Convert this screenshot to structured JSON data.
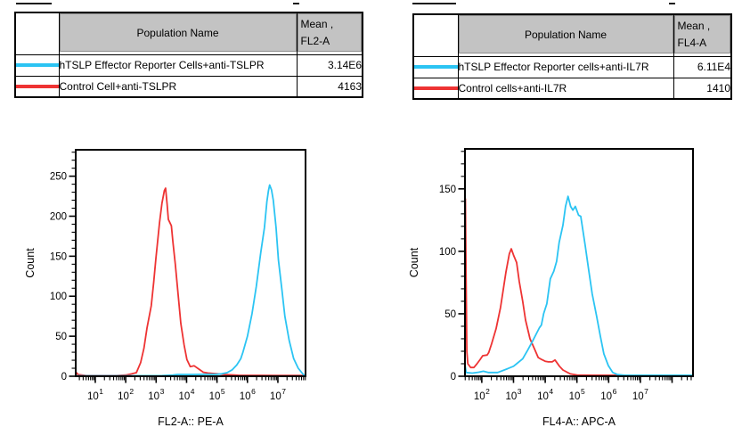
{
  "colors": {
    "cyan": "#2bc4f3",
    "red": "#ee3333",
    "table_header_bg": "#c3c3c3",
    "axis": "#000000"
  },
  "tables": [
    {
      "header": {
        "population": "Population Name",
        "mean_line1": "Mean ,",
        "mean_line2": "FL2-A"
      },
      "rows": [
        {
          "swatch": "cyan",
          "name": "hTSLP Effector Reporter Cells+anti-TSLPR",
          "mean": "3.14E6"
        },
        {
          "swatch": "red",
          "name": "Control Cell+anti-TSLPR",
          "mean": "4163"
        }
      ]
    },
    {
      "header": {
        "population": "Population Name",
        "mean_line1": "Mean ,",
        "mean_line2": "FL4-A"
      },
      "rows": [
        {
          "swatch": "cyan",
          "name": "hTSLP Effector Reporter cells+anti-IL7R",
          "mean": "6.11E4"
        },
        {
          "swatch": "red",
          "name": "Control cells+anti-IL7R",
          "mean": "1410"
        }
      ]
    }
  ],
  "chart_data": [
    {
      "type": "line",
      "title": "",
      "xlabel": "FL2-A:: PE-A",
      "ylabel": "Count",
      "x_scale": "log10",
      "x_log_range": [
        0.357,
        7.909
      ],
      "x_labeled_decades": [
        1,
        2,
        3,
        4,
        5,
        6,
        7
      ],
      "ylim": [
        0,
        283
      ],
      "y_major_ticks": [
        0,
        50,
        100,
        150,
        200,
        250
      ],
      "y_minor_step": 10,
      "grid": false,
      "legend_position": "none",
      "series": [
        {
          "name": "hTSLP Effector Reporter Cells+anti-TSLPR",
          "color_key": "cyan",
          "mean": "3.14E6",
          "peak": {
            "logx": 6.73,
            "count": 239
          },
          "points_logx_count": [
            [
              0.357,
              0.6
            ],
            [
              2.0,
              0.6
            ],
            [
              3.2,
              0.8
            ],
            [
              3.55,
              1.5
            ],
            [
              3.7,
              2.2
            ],
            [
              4.2,
              2.2
            ],
            [
              4.6,
              2.5
            ],
            [
              5.0,
              2.5
            ],
            [
              5.15,
              3
            ],
            [
              5.33,
              4.5
            ],
            [
              5.5,
              8
            ],
            [
              5.65,
              14
            ],
            [
              5.78,
              22
            ],
            [
              5.85,
              30
            ],
            [
              6.0,
              50
            ],
            [
              6.15,
              78
            ],
            [
              6.29,
              112
            ],
            [
              6.44,
              155
            ],
            [
              6.56,
              186
            ],
            [
              6.64,
              218
            ],
            [
              6.69,
              232
            ],
            [
              6.73,
              239
            ],
            [
              6.79,
              233
            ],
            [
              6.85,
              220
            ],
            [
              6.94,
              186
            ],
            [
              7.02,
              145
            ],
            [
              7.14,
              106
            ],
            [
              7.23,
              75
            ],
            [
              7.37,
              45
            ],
            [
              7.52,
              22
            ],
            [
              7.67,
              10
            ],
            [
              7.81,
              3.3
            ],
            [
              7.87,
              1
            ],
            [
              7.909,
              0.6
            ]
          ]
        },
        {
          "name": "Control Cell+anti-TSLPR",
          "color_key": "red",
          "mean": "4163",
          "peak": {
            "logx": 3.31,
            "count": 235
          },
          "points_logx_count": [
            [
              0.357,
              0
            ],
            [
              0.38,
              4.5
            ],
            [
              0.44,
              2
            ],
            [
              0.7,
              0.8
            ],
            [
              1.7,
              0.8
            ],
            [
              2.0,
              1.5
            ],
            [
              2.2,
              3
            ],
            [
              2.35,
              4.5
            ],
            [
              2.49,
              17
            ],
            [
              2.6,
              35
            ],
            [
              2.7,
              60
            ],
            [
              2.84,
              88
            ],
            [
              2.92,
              118
            ],
            [
              2.99,
              147
            ],
            [
              3.11,
              192
            ],
            [
              3.19,
              216
            ],
            [
              3.27,
              232
            ],
            [
              3.31,
              235
            ],
            [
              3.36,
              215
            ],
            [
              3.4,
              196
            ],
            [
              3.44,
              193
            ],
            [
              3.5,
              188
            ],
            [
              3.55,
              168
            ],
            [
              3.63,
              140
            ],
            [
              3.72,
              103
            ],
            [
              3.81,
              66
            ],
            [
              3.92,
              39
            ],
            [
              4.01,
              21
            ],
            [
              4.12,
              12
            ],
            [
              4.25,
              13
            ],
            [
              4.4,
              9
            ],
            [
              4.55,
              5
            ],
            [
              4.7,
              4
            ],
            [
              5.0,
              3
            ],
            [
              5.3,
              2
            ],
            [
              5.7,
              1.2
            ],
            [
              7.0,
              1
            ],
            [
              7.909,
              1
            ]
          ]
        }
      ]
    },
    {
      "type": "line",
      "title": "",
      "xlabel": "FL4-A:: APC-A",
      "ylabel": "Count",
      "x_scale": "log10",
      "x_log_range": [
        1.47,
        8.66
      ],
      "x_labeled_decades": [
        2,
        3,
        4,
        5,
        6,
        7
      ],
      "ylim": [
        0,
        182
      ],
      "y_major_ticks": [
        0,
        50,
        100,
        150
      ],
      "y_minor_step": 10,
      "grid": false,
      "legend_position": "none",
      "series": [
        {
          "name": "hTSLP Effector Reporter cells+anti-IL7R",
          "color_key": "cyan",
          "mean": "6.11E4",
          "peak": {
            "logx": 4.72,
            "count": 144
          },
          "points_logx_count": [
            [
              1.47,
              0
            ],
            [
              1.478,
              8
            ],
            [
              1.51,
              3
            ],
            [
              1.7,
              2.5
            ],
            [
              1.9,
              3.2
            ],
            [
              2.05,
              4
            ],
            [
              2.2,
              3
            ],
            [
              2.5,
              3
            ],
            [
              2.81,
              6
            ],
            [
              3.0,
              8
            ],
            [
              3.1,
              10
            ],
            [
              3.29,
              14
            ],
            [
              3.45,
              21
            ],
            [
              3.6,
              28
            ],
            [
              3.72,
              34
            ],
            [
              3.82,
              39
            ],
            [
              3.88,
              41
            ],
            [
              3.95,
              50
            ],
            [
              4.05,
              58
            ],
            [
              4.16,
              78
            ],
            [
              4.27,
              84
            ],
            [
              4.36,
              92
            ],
            [
              4.44,
              107
            ],
            [
              4.56,
              121
            ],
            [
              4.64,
              136
            ],
            [
              4.72,
              144
            ],
            [
              4.8,
              136
            ],
            [
              4.87,
              133
            ],
            [
              4.95,
              136
            ],
            [
              5.05,
              129
            ],
            [
              5.12,
              128
            ],
            [
              5.26,
              105
            ],
            [
              5.37,
              85
            ],
            [
              5.48,
              66
            ],
            [
              5.62,
              48
            ],
            [
              5.74,
              32
            ],
            [
              5.85,
              18
            ],
            [
              5.99,
              8.6
            ],
            [
              6.13,
              3
            ],
            [
              6.27,
              1.4
            ],
            [
              6.5,
              0.8
            ],
            [
              8.66,
              0.8
            ]
          ]
        },
        {
          "name": "Control cells+anti-IL7R",
          "color_key": "red",
          "mean": "1410",
          "peak": {
            "logx": 2.93,
            "count": 102
          },
          "points_logx_count": [
            [
              1.47,
              0
            ],
            [
              1.485,
              142
            ],
            [
              1.5,
              90
            ],
            [
              1.53,
              20
            ],
            [
              1.56,
              10
            ],
            [
              1.65,
              7
            ],
            [
              1.75,
              7
            ],
            [
              1.85,
              10
            ],
            [
              1.95,
              13.5
            ],
            [
              2.03,
              16.4
            ],
            [
              2.17,
              17
            ],
            [
              2.22,
              19
            ],
            [
              2.31,
              26
            ],
            [
              2.45,
              38
            ],
            [
              2.59,
              55
            ],
            [
              2.67,
              68
            ],
            [
              2.76,
              83
            ],
            [
              2.87,
              98
            ],
            [
              2.93,
              102
            ],
            [
              3.0,
              97
            ],
            [
              3.1,
              91
            ],
            [
              3.18,
              76
            ],
            [
              3.29,
              60
            ],
            [
              3.38,
              45
            ],
            [
              3.52,
              30
            ],
            [
              3.66,
              22
            ],
            [
              3.78,
              15
            ],
            [
              3.88,
              13.5
            ],
            [
              4.0,
              12
            ],
            [
              4.1,
              11.5
            ],
            [
              4.22,
              11.5
            ],
            [
              4.31,
              13
            ],
            [
              4.45,
              8
            ],
            [
              4.56,
              5
            ],
            [
              4.78,
              2
            ],
            [
              5.0,
              1
            ],
            [
              5.5,
              0.8
            ],
            [
              8.66,
              0.8
            ]
          ]
        }
      ]
    }
  ]
}
